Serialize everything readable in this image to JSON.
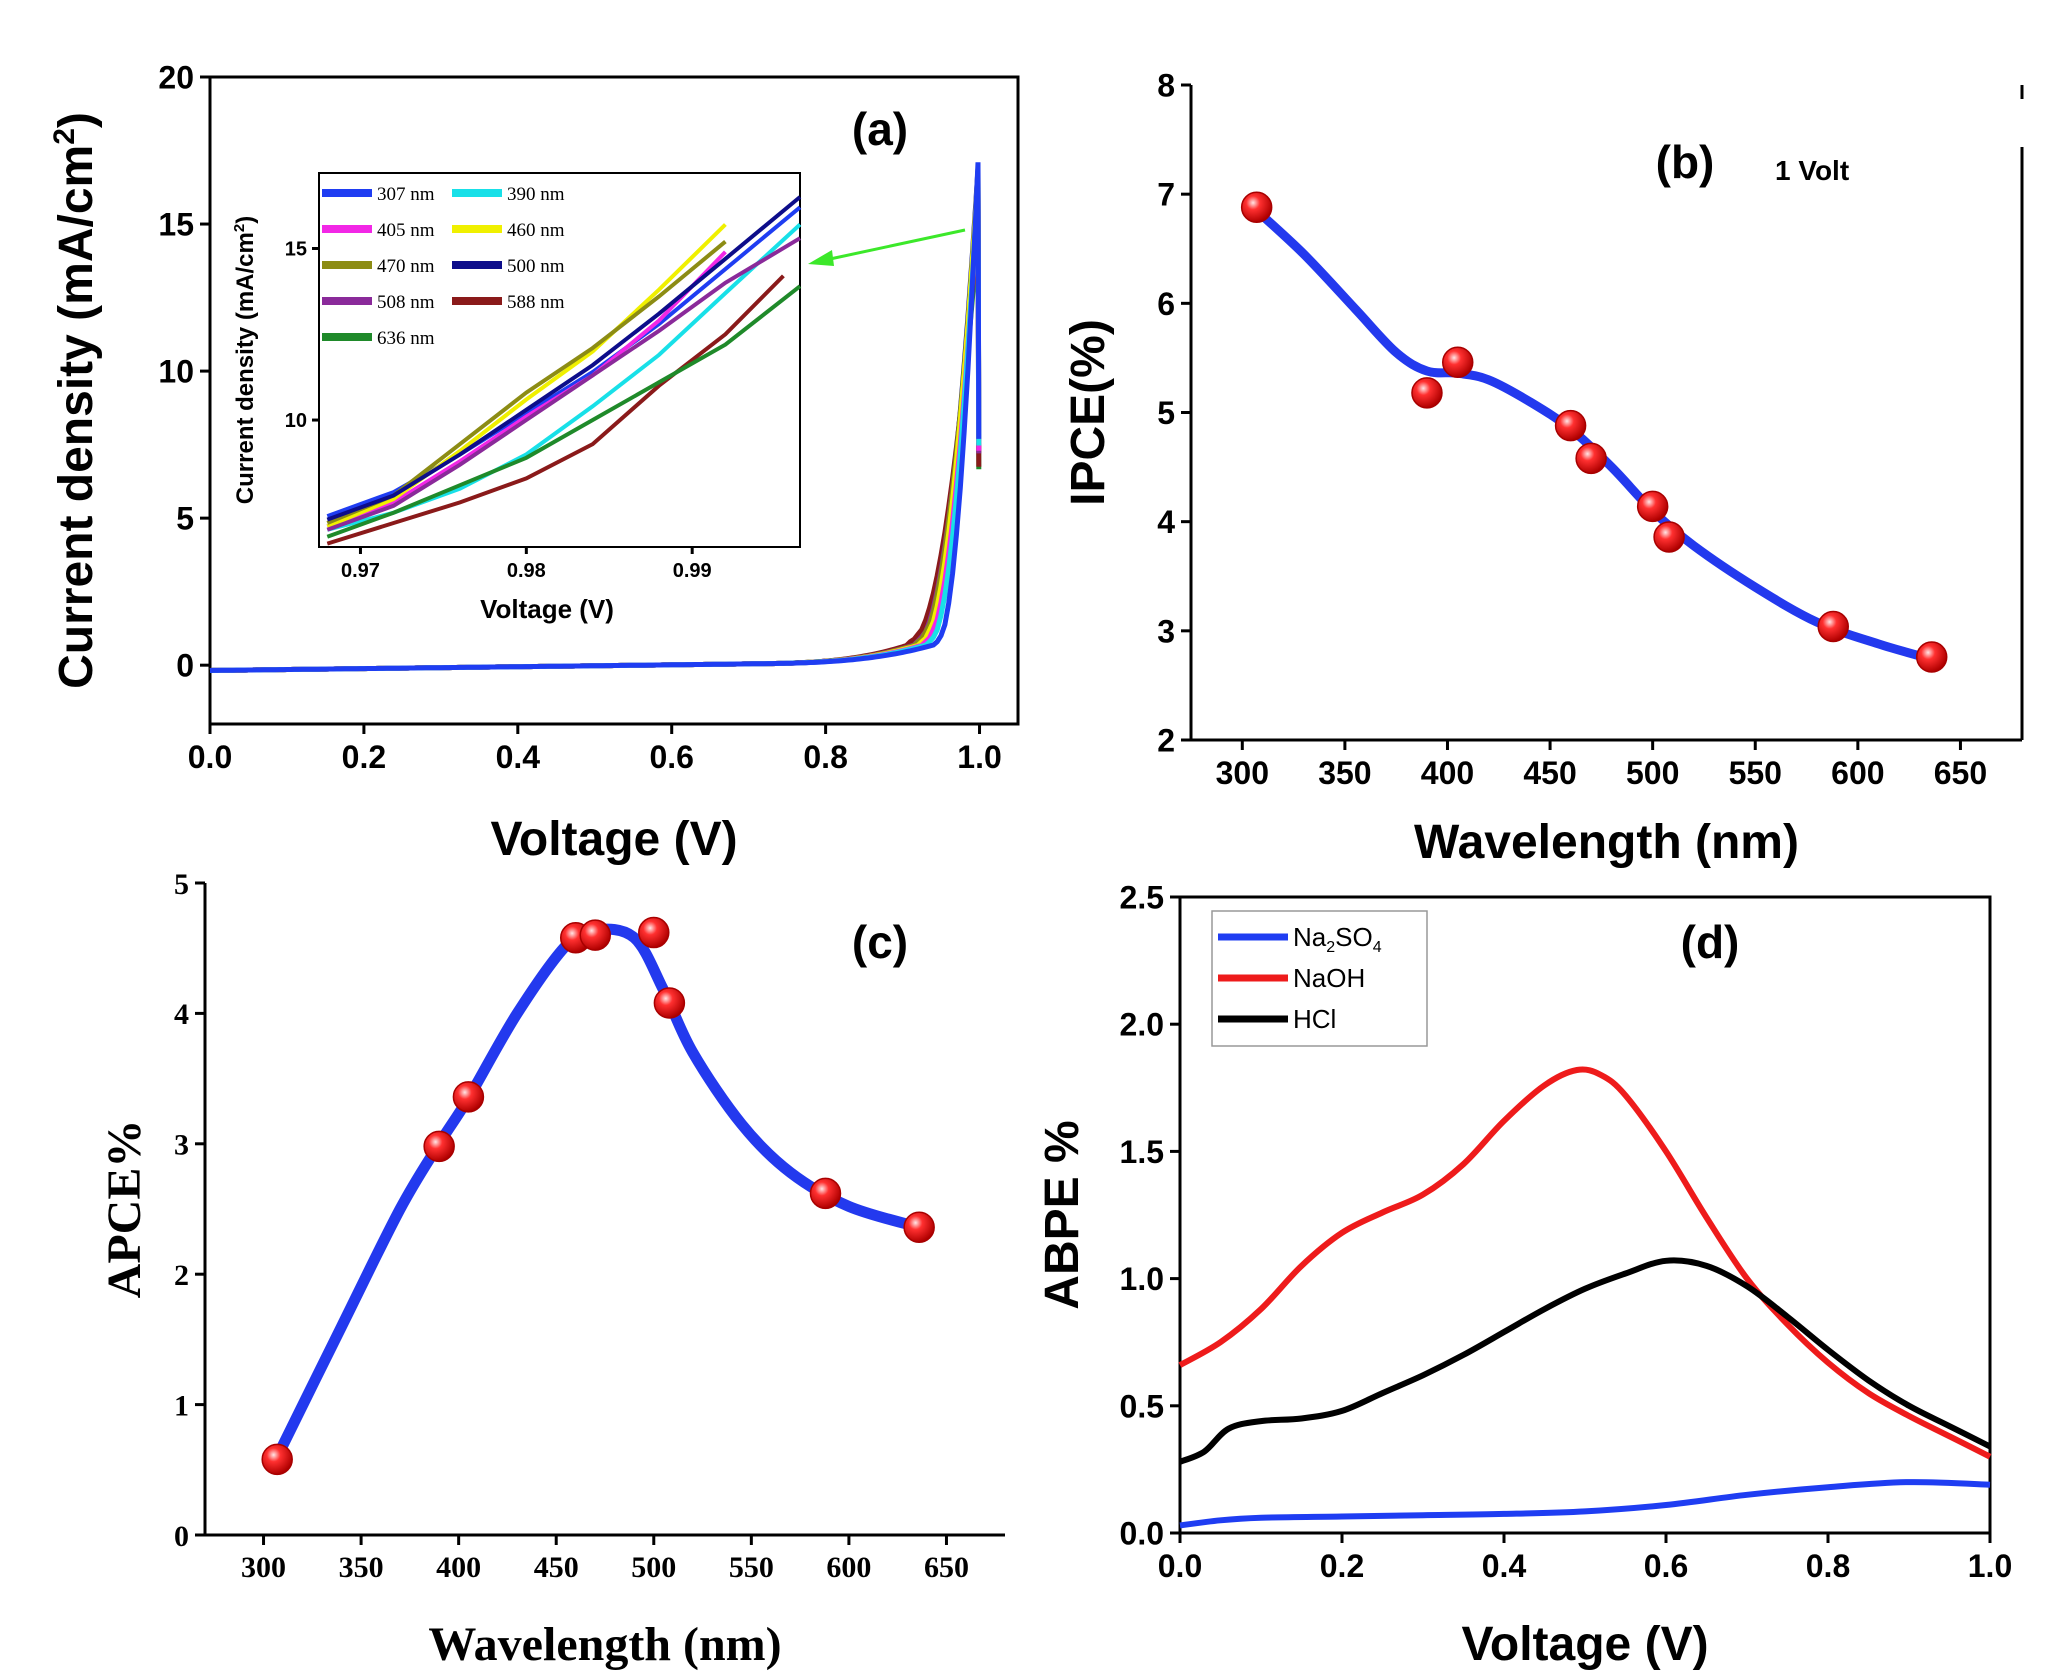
{
  "chart_data": [
    {
      "id": "a",
      "type": "line",
      "panel_label": "(a)",
      "xlabel": "Voltage (V)",
      "ylabel_main": "Current density (mA/cm",
      "ylabel_sup": "2",
      "ylabel_end": ")",
      "xlim": [
        0,
        1.05
      ],
      "ylim": [
        -2,
        20
      ],
      "xticks": [
        0.0,
        0.2,
        0.4,
        0.6,
        0.8,
        1.0
      ],
      "xtick_labels": [
        "0.0",
        "0.2",
        "0.4",
        "0.6",
        "0.8",
        "1.0"
      ],
      "yticks": [
        0,
        5,
        10,
        15,
        20
      ],
      "ytick_labels": [
        "0",
        "5",
        "10",
        "15",
        "20"
      ],
      "series": [
        {
          "name": "307 nm",
          "color": "#1f3df2",
          "onset": 0.945,
          "peak": 17.1
        },
        {
          "name": "390 nm",
          "color": "#18e0e8",
          "onset": 0.935,
          "peak": 16.6
        },
        {
          "name": "405 nm",
          "color": "#f227e6",
          "onset": 0.93,
          "peak": 16.2
        },
        {
          "name": "460 nm",
          "color": "#f0f000",
          "onset": 0.925,
          "peak": 16.8
        },
        {
          "name": "470 nm",
          "color": "#8c8c14",
          "onset": 0.92,
          "peak": 16.4
        },
        {
          "name": "500 nm",
          "color": "#0d0d8a",
          "onset": 0.922,
          "peak": 16.9
        },
        {
          "name": "508 nm",
          "color": "#8a2a9a",
          "onset": 0.918,
          "peak": 16.0
        },
        {
          "name": "588 nm",
          "color": "#8a1a1a",
          "onset": 0.91,
          "peak": 15.0
        },
        {
          "name": "636 nm",
          "color": "#1f8a2a",
          "onset": 0.915,
          "peak": 14.8
        }
      ],
      "inset": {
        "xlabel": "Voltage (V)",
        "ylabel_main": "Current density (mA/cm",
        "ylabel_sup": "2",
        "ylabel_end": ")",
        "xlim": [
          0.9675,
          0.9965
        ],
        "ylim": [
          6.3,
          17.2
        ],
        "xticks": [
          0.97,
          0.98,
          0.99
        ],
        "xtick_labels": [
          "0.97",
          "0.98",
          "0.99"
        ],
        "yticks": [
          10,
          15
        ],
        "ytick_labels": [
          "10",
          "15"
        ],
        "series": [
          {
            "name": "307 nm",
            "x": [
              0.968,
              0.972,
              0.976,
              0.98,
              0.984,
              0.988,
              0.992,
              0.9965
            ],
            "y": [
              7.2,
              7.9,
              9.0,
              10.2,
              11.4,
              12.8,
              14.4,
              16.2
            ]
          },
          {
            "name": "390 nm",
            "x": [
              0.968,
              0.972,
              0.976,
              0.98,
              0.984,
              0.988,
              0.992,
              0.9965
            ],
            "y": [
              6.8,
              7.3,
              8.0,
              9.0,
              10.4,
              11.9,
              13.7,
              15.7
            ]
          },
          {
            "name": "405 nm",
            "x": [
              0.968,
              0.972,
              0.976,
              0.98,
              0.984,
              0.988,
              0.992
            ],
            "y": [
              6.9,
              7.6,
              8.8,
              10.1,
              11.3,
              12.9,
              14.9
            ]
          },
          {
            "name": "460 nm",
            "x": [
              0.968,
              0.972,
              0.976,
              0.98,
              0.984,
              0.988,
              0.992
            ],
            "y": [
              6.9,
              7.7,
              9.1,
              10.6,
              12.0,
              13.8,
              15.7
            ]
          },
          {
            "name": "470 nm",
            "x": [
              0.968,
              0.972,
              0.976,
              0.98,
              0.984,
              0.988,
              0.992
            ],
            "y": [
              7.0,
              7.8,
              9.3,
              10.8,
              12.1,
              13.6,
              15.2
            ]
          },
          {
            "name": "500 nm",
            "x": [
              0.968,
              0.972,
              0.976,
              0.98,
              0.984,
              0.988,
              0.992,
              0.9965
            ],
            "y": [
              7.1,
              7.8,
              9.0,
              10.3,
              11.6,
              13.1,
              14.7,
              16.5
            ]
          },
          {
            "name": "508 nm",
            "x": [
              0.968,
              0.972,
              0.976,
              0.98,
              0.984,
              0.988,
              0.992,
              0.9965
            ],
            "y": [
              6.8,
              7.5,
              8.7,
              10.0,
              11.3,
              12.6,
              14.0,
              15.3
            ]
          },
          {
            "name": "588 nm",
            "x": [
              0.968,
              0.972,
              0.976,
              0.98,
              0.984,
              0.988,
              0.992,
              0.9955
            ],
            "y": [
              6.4,
              7.0,
              7.6,
              8.3,
              9.3,
              11.0,
              12.5,
              14.2
            ]
          },
          {
            "name": "636 nm",
            "x": [
              0.968,
              0.972,
              0.976,
              0.98,
              0.984,
              0.988,
              0.992,
              0.9965
            ],
            "y": [
              6.6,
              7.3,
              8.1,
              8.9,
              10.0,
              11.1,
              12.2,
              13.9
            ]
          }
        ]
      }
    },
    {
      "id": "b",
      "type": "scatter",
      "panel_label": "(b)",
      "annotation": "1 Volt",
      "xlabel": "Wavelength (nm)",
      "ylabel": "IPCE(%)",
      "xlim": [
        275,
        680
      ],
      "ylim": [
        2,
        8
      ],
      "xticks": [
        300,
        350,
        400,
        450,
        500,
        550,
        600,
        650
      ],
      "xtick_labels": [
        "300",
        "350",
        "400",
        "450",
        "500",
        "550",
        "600",
        "650"
      ],
      "yticks": [
        2,
        3,
        4,
        5,
        6,
        7,
        8
      ],
      "ytick_labels": [
        "2",
        "3",
        "4",
        "5",
        "6",
        "7",
        "8"
      ],
      "points": {
        "x": [
          307,
          390,
          405,
          460,
          470,
          500,
          508,
          588,
          636
        ],
        "y": [
          6.88,
          5.18,
          5.46,
          4.88,
          4.58,
          4.14,
          3.86,
          3.04,
          2.76
        ]
      },
      "fit": {
        "x": [
          307,
          330,
          355,
          375,
          390,
          405,
          420,
          440,
          460,
          480,
          500,
          520,
          550,
          580,
          610,
          636
        ],
        "y": [
          6.85,
          6.45,
          5.95,
          5.55,
          5.38,
          5.36,
          5.3,
          5.1,
          4.85,
          4.5,
          4.1,
          3.78,
          3.4,
          3.08,
          2.88,
          2.74
        ]
      }
    },
    {
      "id": "c",
      "type": "scatter",
      "panel_label": "(c)",
      "xlabel": "Wavelength (nm)",
      "ylabel": "APCE%",
      "xlim": [
        270,
        680
      ],
      "ylim": [
        0,
        5
      ],
      "xticks": [
        300,
        350,
        400,
        450,
        500,
        550,
        600,
        650
      ],
      "xtick_labels": [
        "300",
        "350",
        "400",
        "450",
        "500",
        "550",
        "600",
        "650"
      ],
      "yticks": [
        0,
        1,
        2,
        3,
        4,
        5
      ],
      "ytick_labels": [
        "0",
        "1",
        "2",
        "3",
        "4",
        "5"
      ],
      "points": {
        "x": [
          307,
          390,
          405,
          460,
          470,
          500,
          508,
          588,
          636
        ],
        "y": [
          0.58,
          2.98,
          3.36,
          4.58,
          4.6,
          4.62,
          4.08,
          2.62,
          2.36
        ]
      },
      "fit": {
        "x": [
          307,
          340,
          370,
          390,
          405,
          430,
          455,
          470,
          490,
          505,
          520,
          545,
          570,
          600,
          636
        ],
        "y": [
          0.6,
          1.6,
          2.5,
          3.0,
          3.35,
          4.0,
          4.52,
          4.64,
          4.58,
          4.18,
          3.7,
          3.15,
          2.78,
          2.52,
          2.36
        ]
      }
    },
    {
      "id": "d",
      "type": "line",
      "panel_label": "(d)",
      "xlabel": "Voltage (V)",
      "ylabel": "ABPE %",
      "xlim": [
        0,
        1.0
      ],
      "ylim": [
        0,
        2.5
      ],
      "xticks": [
        0.0,
        0.2,
        0.4,
        0.6,
        0.8,
        1.0
      ],
      "xtick_labels": [
        "0.0",
        "0.2",
        "0.4",
        "0.6",
        "0.8",
        "1.0"
      ],
      "yticks": [
        0.0,
        0.5,
        1.0,
        1.5,
        2.0,
        2.5
      ],
      "ytick_labels": [
        "0.0",
        "0.5",
        "1.0",
        "1.5",
        "2.0",
        "2.5"
      ],
      "legend_position": "top-left",
      "series": [
        {
          "name": "Na2SO4",
          "label_base": "Na",
          "label_sub1": "2",
          "label_mid": "SO",
          "label_sub2": "4",
          "color": "#1f3df2",
          "x": [
            0,
            0.05,
            0.1,
            0.2,
            0.3,
            0.4,
            0.5,
            0.6,
            0.7,
            0.8,
            0.9,
            1.0
          ],
          "y": [
            0.03,
            0.05,
            0.06,
            0.065,
            0.07,
            0.075,
            0.085,
            0.11,
            0.15,
            0.18,
            0.2,
            0.19
          ]
        },
        {
          "name": "NaOH",
          "color": "#ee1b1b",
          "x": [
            0,
            0.05,
            0.1,
            0.15,
            0.2,
            0.25,
            0.3,
            0.35,
            0.4,
            0.45,
            0.49,
            0.52,
            0.55,
            0.6,
            0.65,
            0.7,
            0.75,
            0.8,
            0.85,
            0.9,
            0.95,
            1.0
          ],
          "y": [
            0.66,
            0.75,
            0.88,
            1.05,
            1.18,
            1.26,
            1.33,
            1.45,
            1.62,
            1.76,
            1.82,
            1.8,
            1.72,
            1.5,
            1.24,
            1.0,
            0.82,
            0.67,
            0.55,
            0.46,
            0.38,
            0.3
          ]
        },
        {
          "name": "HCl",
          "color": "#000000",
          "x": [
            0,
            0.03,
            0.06,
            0.1,
            0.15,
            0.2,
            0.25,
            0.3,
            0.35,
            0.4,
            0.45,
            0.5,
            0.55,
            0.6,
            0.65,
            0.7,
            0.75,
            0.8,
            0.85,
            0.9,
            0.95,
            1.0
          ],
          "y": [
            0.28,
            0.32,
            0.41,
            0.44,
            0.45,
            0.48,
            0.55,
            0.62,
            0.7,
            0.79,
            0.88,
            0.96,
            1.02,
            1.07,
            1.05,
            0.97,
            0.85,
            0.72,
            0.6,
            0.5,
            0.42,
            0.34
          ]
        }
      ]
    }
  ]
}
